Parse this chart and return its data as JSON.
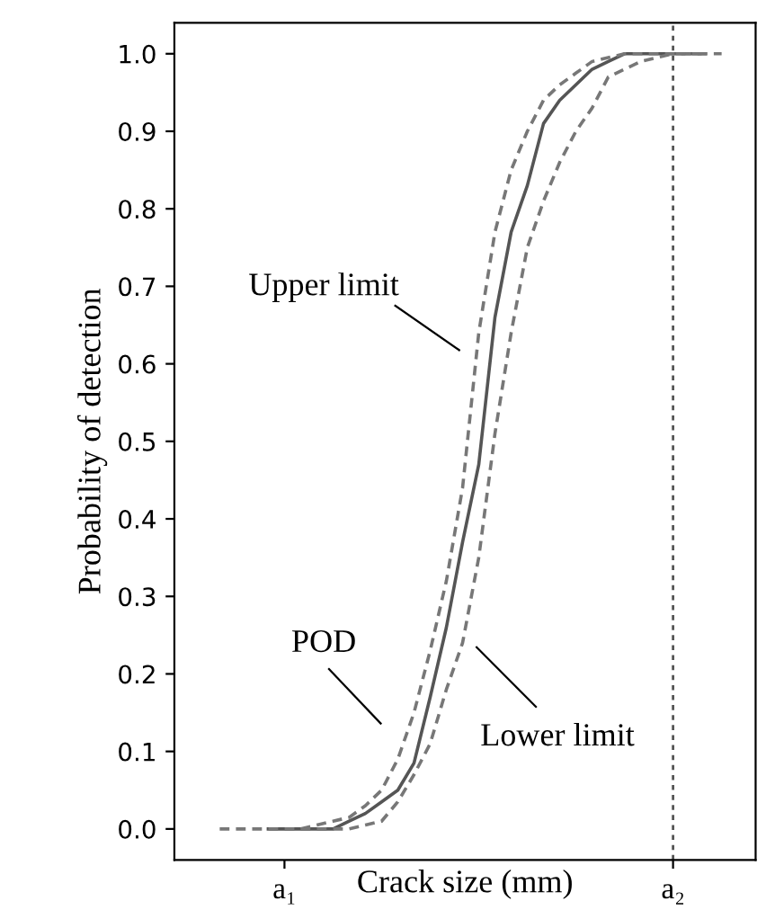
{
  "chart_data": {
    "type": "line",
    "xlabel": "Crack size (mm)",
    "ylabel": "Probability of detection",
    "categories": [
      null,
      null,
      null,
      null,
      "a₁",
      null,
      null,
      null,
      null,
      null,
      null,
      null,
      null,
      null,
      null,
      null,
      null,
      null,
      null,
      null,
      null,
      null,
      null,
      null,
      null,
      null,
      null,
      null,
      "a₂",
      null,
      null,
      null
    ],
    "ylim": [
      -0.04,
      1.04
    ],
    "yticks": [
      {
        "value": 0,
        "label": "0.0"
      },
      0.1,
      0.2,
      0.3,
      0.4,
      0.5,
      0.6,
      0.7,
      0.8,
      0.9,
      {
        "value": 1,
        "label": "1.0"
      }
    ],
    "grid": false,
    "legend": false,
    "marker": "none",
    "series": [
      {
        "color": "#555555",
        "line_style": "solid",
        "values": [
          null,
          null,
          null,
          0,
          0,
          0,
          0,
          0,
          0.01,
          0.02,
          0.035,
          0.05,
          0.085,
          0.17,
          0.26,
          0.37,
          0.47,
          0.66,
          0.77,
          0.83,
          0.91,
          0.94,
          0.96,
          0.98,
          0.99,
          1,
          1,
          1,
          1,
          1,
          1,
          null
        ]
      },
      {
        "color": "#777777",
        "line_style": "dashed",
        "values": [
          0,
          0,
          0,
          0,
          0,
          0,
          0.005,
          0.01,
          0.015,
          0.03,
          0.05,
          0.09,
          0.15,
          0.23,
          0.32,
          0.44,
          0.64,
          0.77,
          0.85,
          0.9,
          0.94,
          0.96,
          0.975,
          0.99,
          0.995,
          1,
          1,
          1,
          1,
          1,
          1,
          1
        ]
      },
      {
        "color": "#777777",
        "line_style": "dashed",
        "values": [
          null,
          null,
          null,
          null,
          null,
          0,
          0,
          0,
          0,
          0.005,
          0.01,
          0.035,
          0.07,
          0.11,
          0.18,
          0.24,
          0.35,
          0.51,
          0.64,
          0.75,
          0.81,
          0.86,
          0.9,
          0.93,
          0.97,
          0.98,
          0.99,
          0.995,
          1,
          1,
          1,
          null
        ]
      }
    ],
    "ref_lines": [
      {
        "axis": "x",
        "value": "a₂",
        "color": "#555555",
        "line_style": "dotted"
      }
    ],
    "annotations": [
      "Upper limit",
      "POD",
      "Lower limit"
    ]
  }
}
